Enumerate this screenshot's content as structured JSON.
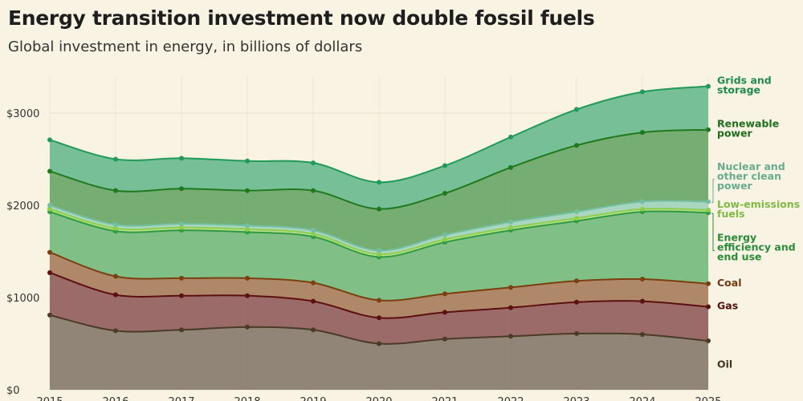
{
  "title": "Energy transition investment now double fossil fuels",
  "subtitle": "Global investment in energy, in billions of dollars",
  "chart_data": {
    "type": "area",
    "stacked": true,
    "title": "Energy transition investment now double fossil fuels",
    "subtitle": "Global investment in energy, in billions of dollars",
    "xlabel": "",
    "ylabel": "",
    "x": [
      2015,
      2016,
      2017,
      2018,
      2019,
      2020,
      2021,
      2022,
      2023,
      2024,
      2025
    ],
    "ylim": [
      0,
      3400
    ],
    "y_ticks": [
      0,
      1000,
      2000,
      3000
    ],
    "y_tick_labels": [
      "$0",
      "$1000",
      "$2000",
      "$3000"
    ],
    "x_tick_labels": [
      "2015",
      "2016",
      "2017",
      "2018",
      "2019",
      "2020",
      "2021",
      "2022",
      "2023",
      "2024",
      "2025"
    ],
    "grid": true,
    "legend": "direct labels at right",
    "series": [
      {
        "name": "Oil",
        "color": "#4a3a26",
        "values": [
          810,
          640,
          650,
          680,
          650,
          500,
          550,
          580,
          610,
          600,
          530
        ]
      },
      {
        "name": "Gas",
        "color": "#5c1010",
        "values": [
          460,
          390,
          370,
          340,
          310,
          280,
          290,
          310,
          340,
          360,
          370
        ]
      },
      {
        "name": "Coal",
        "color": "#7b3f10",
        "values": [
          220,
          200,
          190,
          190,
          200,
          190,
          200,
          220,
          230,
          240,
          250
        ]
      },
      {
        "name": "Energy efficiency and end use",
        "color": "#2f9a3f",
        "values": [
          440,
          490,
          520,
          500,
          500,
          470,
          560,
          620,
          650,
          730,
          770
        ]
      },
      {
        "name": "Low-emissions fuels",
        "color": "#8ccf4d",
        "values": [
          30,
          30,
          30,
          30,
          30,
          30,
          30,
          30,
          30,
          30,
          30
        ]
      },
      {
        "name": "Nuclear and other clean power",
        "color": "#74bfa0",
        "values": [
          40,
          40,
          40,
          40,
          40,
          40,
          50,
          60,
          70,
          80,
          90
        ]
      },
      {
        "name": "Renewable power",
        "color": "#1f7a1f",
        "values": [
          370,
          370,
          380,
          380,
          430,
          450,
          450,
          590,
          720,
          750,
          780
        ]
      },
      {
        "name": "Grids and storage",
        "color": "#21995a",
        "values": [
          340,
          340,
          330,
          320,
          300,
          290,
          300,
          330,
          390,
          440,
          470
        ]
      }
    ]
  }
}
